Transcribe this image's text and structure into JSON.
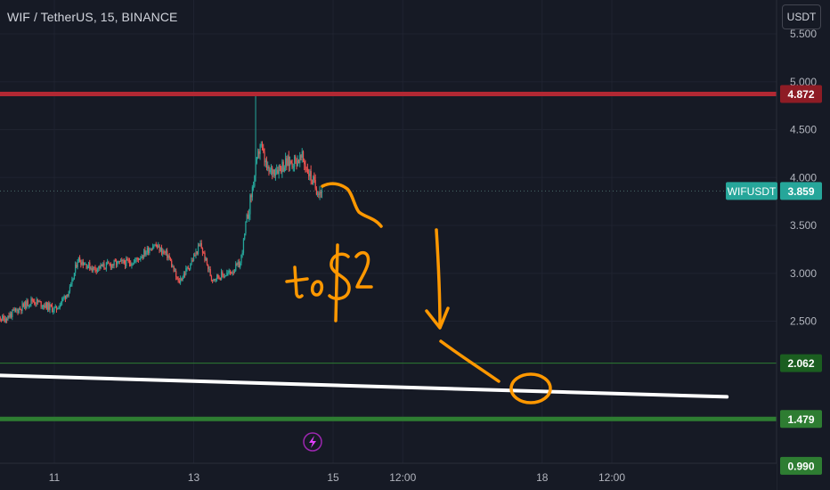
{
  "header": {
    "symbol_title": "WIF / TetherUS, 15, BINANCE",
    "currency_button": "USDT"
  },
  "annotation": {
    "text": "to $2"
  },
  "events_icon": "lightning-icon",
  "colors": {
    "background": "#161a25",
    "up": "#26a69a",
    "down": "#ef5350",
    "resistance": "#b22833",
    "support": "#2e7d32",
    "annotation": "#ff9800",
    "trendline": "#ffffff",
    "event_icon": "#9c27b0"
  },
  "chart_data": {
    "type": "candlestick",
    "symbol": "WIFUSDT",
    "interval": "15",
    "exchange": "BINANCE",
    "last_price": 3.859,
    "y_ticks": [
      2.5,
      3.0,
      3.5,
      4.0,
      4.5,
      5.0,
      5.5
    ],
    "y_tick_labels": [
      "2.500",
      "3.000",
      "3.500",
      "4.000",
      "4.500",
      "5.000",
      "5.500"
    ],
    "x_ticks": [
      {
        "label": "11",
        "index": 0
      },
      {
        "label": "13",
        "index": 126
      },
      {
        "label": "15",
        "index": 252
      },
      {
        "label": "12:00",
        "index": 315
      },
      {
        "label": "18",
        "index": 441
      },
      {
        "label": "12:00",
        "index": 504
      }
    ],
    "price_labels": [
      {
        "text": "WIFUSDT",
        "value": 3.859,
        "kind": "symbol"
      },
      {
        "text": "3.859",
        "value": 3.859,
        "kind": "last"
      },
      {
        "text": "4.872",
        "value": 4.872,
        "kind": "resistance"
      },
      {
        "text": "2.062",
        "value": 2.062,
        "kind": "support"
      },
      {
        "text": "1.479",
        "value": 1.479,
        "kind": "support_strong"
      },
      {
        "text": "0.990",
        "value": 0.99,
        "kind": "support_strong"
      }
    ],
    "horizontal_levels": [
      {
        "value": 4.872,
        "color": "#b22833",
        "style": "thick"
      },
      {
        "value": 2.062,
        "color": "#2e7d32",
        "style": "thin"
      },
      {
        "value": 1.479,
        "color": "#2e7d32",
        "style": "thick"
      }
    ],
    "trendline": {
      "start": {
        "index": -66,
        "value": 1.94
      },
      "end": {
        "index": 608,
        "value": 1.71
      }
    },
    "candle_anchors": [
      {
        "index": -66,
        "value": 2.6
      },
      {
        "index": -46,
        "value": 2.52
      },
      {
        "index": -20,
        "value": 2.72
      },
      {
        "index": 1,
        "value": 2.62
      },
      {
        "index": 15,
        "value": 2.85
      },
      {
        "index": 21,
        "value": 3.15
      },
      {
        "index": 35,
        "value": 3.05
      },
      {
        "index": 55,
        "value": 3.1
      },
      {
        "index": 72,
        "value": 3.12
      },
      {
        "index": 90,
        "value": 3.3
      },
      {
        "index": 103,
        "value": 3.18
      },
      {
        "index": 112,
        "value": 2.9
      },
      {
        "index": 122,
        "value": 3.08
      },
      {
        "index": 132,
        "value": 3.3
      },
      {
        "index": 142,
        "value": 2.95
      },
      {
        "index": 158,
        "value": 3.0
      },
      {
        "index": 168,
        "value": 3.1
      },
      {
        "index": 174,
        "value": 3.55
      },
      {
        "index": 180,
        "value": 3.95
      },
      {
        "index": 186,
        "value": 4.35
      },
      {
        "index": 193,
        "value": 4.05
      },
      {
        "index": 210,
        "value": 4.15
      },
      {
        "index": 224,
        "value": 4.2
      },
      {
        "index": 236,
        "value": 3.9
      },
      {
        "index": 242,
        "value": 3.859
      }
    ],
    "spike": {
      "index": 182,
      "high": 4.85
    }
  }
}
